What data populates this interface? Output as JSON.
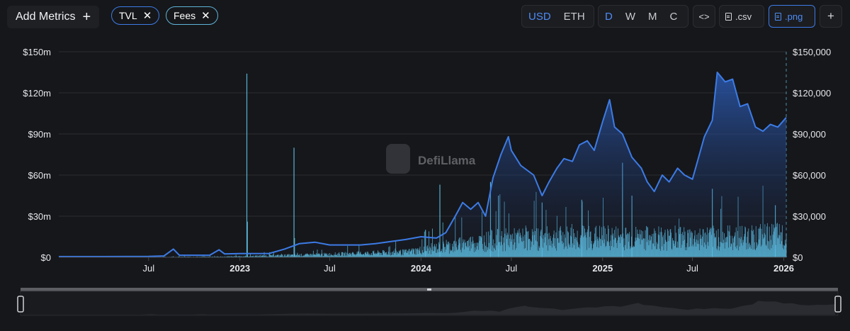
{
  "toolbar": {
    "add_metrics_label": "Add Metrics",
    "add_icon": "plus-icon",
    "pills": [
      {
        "label": "TVL",
        "color": "#3c7be6"
      },
      {
        "label": "Fees",
        "color": "#5fb3d9"
      }
    ],
    "currency": {
      "options": [
        "USD",
        "ETH"
      ],
      "selected": "USD"
    },
    "granularity": {
      "options": [
        "D",
        "W",
        "M",
        "C"
      ],
      "selected": "D"
    },
    "embed_icon": "code-icon",
    "csv_label": ".csv",
    "png_label": ".png",
    "more_label": "+"
  },
  "watermark": "DefiLlama",
  "colors": {
    "tvl": "#3c7be6",
    "fees": "#5fc3e8",
    "background": "#16171a"
  },
  "chart_data": {
    "type": "area",
    "x_tick_labels": [
      {
        "label": "Jul",
        "date": "2022-07-01",
        "bold": false
      },
      {
        "label": "2023",
        "date": "2023-01-01",
        "bold": true
      },
      {
        "label": "Jul",
        "date": "2023-07-01",
        "bold": false
      },
      {
        "label": "2024",
        "date": "2024-01-01",
        "bold": true
      },
      {
        "label": "Jul",
        "date": "2024-07-01",
        "bold": false
      },
      {
        "label": "2025",
        "date": "2025-01-01",
        "bold": true
      },
      {
        "label": "Jul",
        "date": "2025-07-01",
        "bold": false
      },
      {
        "label": "2026",
        "date": "2026-01-01",
        "bold": true
      }
    ],
    "x_range": [
      "2022-01-01",
      "2026-01-06"
    ],
    "left_axis": {
      "ticks": [
        "$0",
        "$30m",
        "$60m",
        "$90m",
        "$120m",
        "$150m"
      ],
      "ylim": [
        0,
        150
      ]
    },
    "right_axis": {
      "ticks": [
        "$0",
        "$30,000",
        "$60,000",
        "$90,000",
        "$120,000",
        "$150,000"
      ],
      "ylim": [
        0,
        150000
      ]
    },
    "grid": true,
    "series": [
      {
        "name": "TVL",
        "kind": "area",
        "axis": "left",
        "points": [
          [
            "2022-01-01",
            0.5
          ],
          [
            "2022-04-01",
            0.5
          ],
          [
            "2022-07-01",
            0.6
          ],
          [
            "2022-08-01",
            1.0
          ],
          [
            "2022-08-20",
            6.0
          ],
          [
            "2022-09-01",
            1.5
          ],
          [
            "2022-11-01",
            1.5
          ],
          [
            "2022-11-20",
            5.5
          ],
          [
            "2022-12-01",
            2.5
          ],
          [
            "2023-01-01",
            2.7
          ],
          [
            "2023-03-01",
            2.8
          ],
          [
            "2023-04-01",
            6.0
          ],
          [
            "2023-05-01",
            10.0
          ],
          [
            "2023-06-01",
            11.0
          ],
          [
            "2023-07-01",
            9.0
          ],
          [
            "2023-09-01",
            9.0
          ],
          [
            "2023-10-01",
            10.0
          ],
          [
            "2023-12-01",
            13.0
          ],
          [
            "2024-01-01",
            15.0
          ],
          [
            "2024-02-01",
            14.0
          ],
          [
            "2024-02-20",
            18.0
          ],
          [
            "2024-03-10",
            30.0
          ],
          [
            "2024-03-25",
            40.0
          ],
          [
            "2024-04-10",
            35.0
          ],
          [
            "2024-04-25",
            40.0
          ],
          [
            "2024-05-10",
            30.0
          ],
          [
            "2024-05-25",
            58.0
          ],
          [
            "2024-06-10",
            75.0
          ],
          [
            "2024-06-25",
            88.0
          ],
          [
            "2024-07-01",
            78.0
          ],
          [
            "2024-07-20",
            67.0
          ],
          [
            "2024-08-15",
            60.0
          ],
          [
            "2024-09-01",
            45.0
          ],
          [
            "2024-09-15",
            55.0
          ],
          [
            "2024-10-01",
            65.0
          ],
          [
            "2024-10-15",
            72.0
          ],
          [
            "2024-11-01",
            70.0
          ],
          [
            "2024-11-15",
            82.0
          ],
          [
            "2024-12-01",
            85.0
          ],
          [
            "2024-12-15",
            78.0
          ],
          [
            "2025-01-01",
            99.0
          ],
          [
            "2025-01-15",
            115.0
          ],
          [
            "2025-01-25",
            95.0
          ],
          [
            "2025-02-10",
            90.0
          ],
          [
            "2025-03-01",
            73.0
          ],
          [
            "2025-03-20",
            65.0
          ],
          [
            "2025-04-01",
            55.0
          ],
          [
            "2025-04-15",
            48.0
          ],
          [
            "2025-05-01",
            60.0
          ],
          [
            "2025-05-15",
            55.0
          ],
          [
            "2025-06-01",
            65.0
          ],
          [
            "2025-06-15",
            60.0
          ],
          [
            "2025-07-01",
            57.0
          ],
          [
            "2025-07-15",
            75.0
          ],
          [
            "2025-07-25",
            88.0
          ],
          [
            "2025-08-10",
            100.0
          ],
          [
            "2025-08-20",
            135.0
          ],
          [
            "2025-09-05",
            128.0
          ],
          [
            "2025-09-20",
            130.0
          ],
          [
            "2025-10-05",
            110.0
          ],
          [
            "2025-10-20",
            112.0
          ],
          [
            "2025-11-05",
            95.0
          ],
          [
            "2025-11-20",
            92.0
          ],
          [
            "2025-12-05",
            97.0
          ],
          [
            "2025-12-20",
            95.0
          ],
          [
            "2026-01-06",
            102.0
          ]
        ]
      },
      {
        "name": "Fees",
        "kind": "bar",
        "axis": "right",
        "spikes": [
          [
            "2023-01-15",
            134000
          ],
          [
            "2023-01-16",
            26000
          ],
          [
            "2023-04-20",
            80000
          ],
          [
            "2023-04-21",
            14000
          ],
          [
            "2024-01-10",
            20000
          ],
          [
            "2024-02-08",
            53000
          ],
          [
            "2024-05-20",
            55000
          ],
          [
            "2024-06-05",
            45000
          ],
          [
            "2024-09-01",
            40000
          ],
          [
            "2024-11-20",
            42000
          ],
          [
            "2025-02-10",
            69000
          ],
          [
            "2025-03-01",
            45000
          ],
          [
            "2025-08-10",
            50000
          ],
          [
            "2025-12-15",
            38000
          ]
        ],
        "baseline": [
          [
            "2022-01-01",
            0
          ],
          [
            "2022-12-01",
            500
          ],
          [
            "2023-06-01",
            2000
          ],
          [
            "2023-12-01",
            4000
          ],
          [
            "2024-03-01",
            9000
          ],
          [
            "2024-06-01",
            14000
          ],
          [
            "2024-12-01",
            16000
          ],
          [
            "2025-06-01",
            15000
          ],
          [
            "2025-10-01",
            16000
          ],
          [
            "2026-01-06",
            17000
          ]
        ]
      }
    ]
  }
}
